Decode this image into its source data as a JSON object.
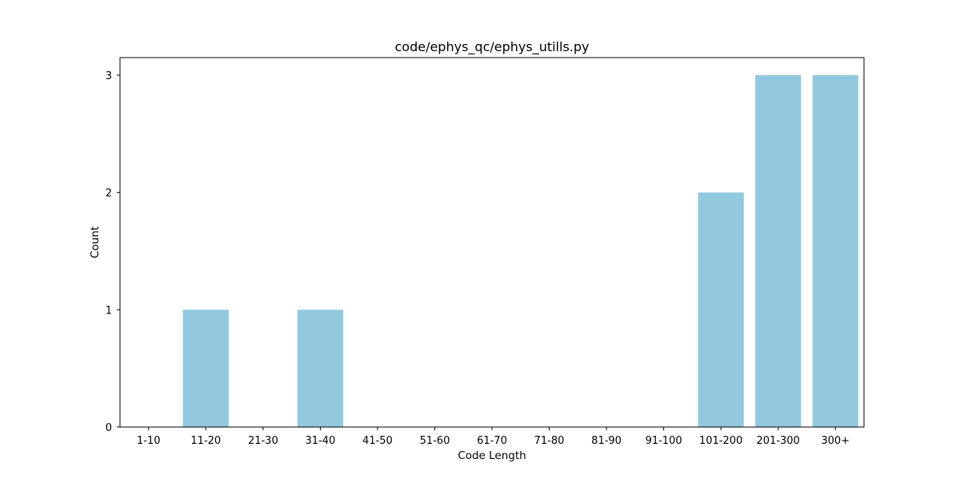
{
  "colors": {
    "bar": "#92c9de",
    "axis": "#000000",
    "background": "#ffffff"
  },
  "chart_data": {
    "type": "bar",
    "title": "code/ephys_qc/ephys_utills.py",
    "xlabel": "Code Length",
    "ylabel": "Count",
    "categories": [
      "1-10",
      "11-20",
      "21-30",
      "31-40",
      "41-50",
      "51-60",
      "61-70",
      "71-80",
      "81-90",
      "91-100",
      "101-200",
      "201-300",
      "300+"
    ],
    "values": [
      0,
      1,
      0,
      1,
      0,
      0,
      0,
      0,
      0,
      0,
      2,
      3,
      3
    ],
    "ylim": [
      0,
      3.15
    ],
    "yticks": [
      0,
      1,
      2,
      3
    ],
    "grid": false,
    "legend": "none"
  }
}
